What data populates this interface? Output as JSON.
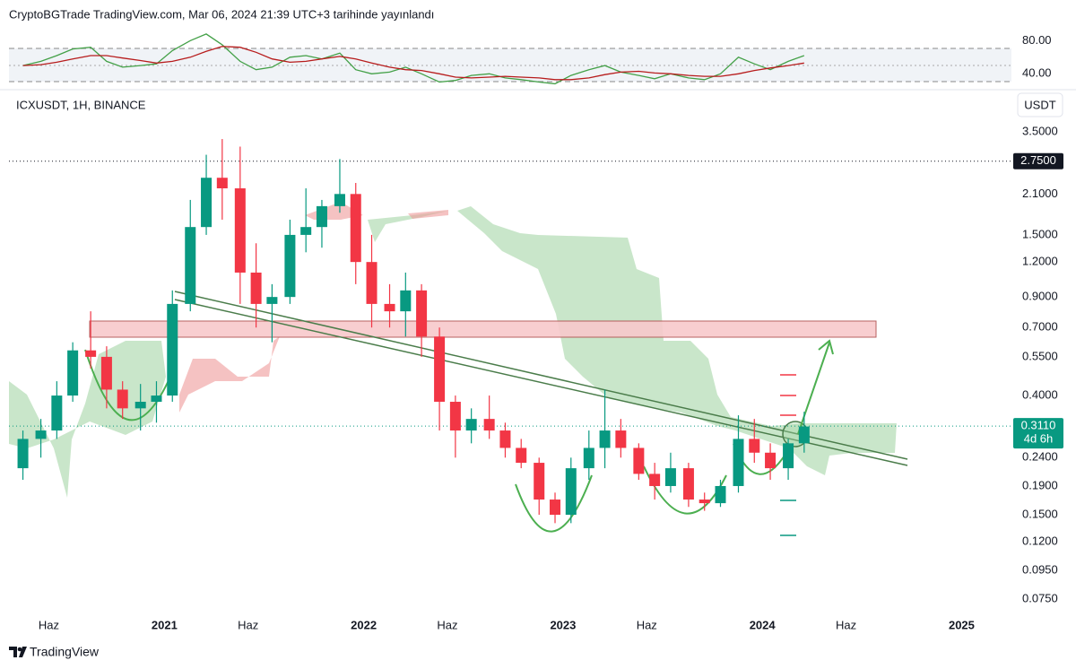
{
  "header": {
    "text": "CryptoBGTrade TradingView.com, Mar 06, 2024 21:39 UTC+3 tarihinde yayınlandı"
  },
  "footer": {
    "brand": "TradingView"
  },
  "chart_data": [
    {
      "type": "line",
      "x": [
        2020.29,
        2020.38,
        2020.46,
        2020.54,
        2020.63,
        2020.71,
        2020.79,
        2020.88,
        2020.96,
        2021.04,
        2021.13,
        2021.21,
        2021.29,
        2021.38,
        2021.46,
        2021.54,
        2021.63,
        2021.71,
        2021.79,
        2021.88,
        2021.96,
        2022.04,
        2022.13,
        2022.21,
        2022.29,
        2022.38,
        2022.46,
        2022.54,
        2022.63,
        2022.71,
        2022.79,
        2022.88,
        2022.96,
        2023.04,
        2023.13,
        2023.21,
        2023.29,
        2023.38,
        2023.46,
        2023.54,
        2023.63,
        2023.71,
        2023.79,
        2023.88,
        2023.96,
        2024.04,
        2024.13,
        2024.21
      ],
      "xlim": [
        2020.22,
        2025.25
      ],
      "ylim": [
        23,
        102
      ],
      "yticks": [
        {
          "value": 80,
          "label": "80.00"
        },
        {
          "value": 40,
          "label": "40.00"
        }
      ],
      "series": [
        {
          "color": "#43a047",
          "values": [
            50,
            55,
            62,
            70,
            72,
            55,
            48,
            50,
            52,
            68,
            80,
            88,
            75,
            55,
            45,
            48,
            60,
            62,
            58,
            65,
            45,
            40,
            42,
            48,
            40,
            30,
            32,
            38,
            40,
            35,
            33,
            30,
            28,
            38,
            45,
            50,
            42,
            38,
            34,
            40,
            35,
            33,
            40,
            60,
            52,
            45,
            55,
            62
          ]
        },
        {
          "color": "#b71c1c",
          "values": [
            50,
            51,
            54,
            58,
            62,
            62,
            59,
            56,
            53,
            55,
            60,
            67,
            73,
            72,
            66,
            58,
            54,
            55,
            58,
            61,
            58,
            53,
            48,
            45,
            44,
            40,
            36,
            35,
            36,
            37,
            36,
            35,
            33,
            33,
            35,
            39,
            42,
            43,
            41,
            40,
            38,
            37,
            37,
            40,
            44,
            47,
            50,
            53
          ]
        }
      ]
    },
    {
      "type": "candlestick",
      "title": "ICXUSDT, 1H, BINANCE",
      "currency": "USDT",
      "log_scale": true,
      "up_color": "#089981",
      "down_color": "#f23645",
      "x": [
        2020.29,
        2020.38,
        2020.46,
        2020.54,
        2020.63,
        2020.71,
        2020.79,
        2020.88,
        2020.96,
        2021.04,
        2021.13,
        2021.21,
        2021.29,
        2021.38,
        2021.46,
        2021.54,
        2021.63,
        2021.71,
        2021.79,
        2021.88,
        2021.96,
        2022.04,
        2022.13,
        2022.21,
        2022.29,
        2022.38,
        2022.46,
        2022.54,
        2022.63,
        2022.71,
        2022.79,
        2022.88,
        2022.96,
        2023.04,
        2023.13,
        2023.21,
        2023.29,
        2023.38,
        2023.46,
        2023.54,
        2023.63,
        2023.71,
        2023.79,
        2023.88,
        2023.96,
        2024.04,
        2024.13,
        2024.21
      ],
      "open": [
        0.22,
        0.28,
        0.3,
        0.4,
        0.58,
        0.55,
        0.42,
        0.36,
        0.38,
        0.4,
        0.85,
        1.6,
        2.4,
        2.2,
        1.1,
        0.85,
        0.9,
        1.5,
        1.6,
        1.9,
        2.1,
        1.2,
        0.85,
        0.8,
        0.95,
        0.65,
        0.38,
        0.3,
        0.33,
        0.3,
        0.26,
        0.23,
        0.17,
        0.15,
        0.22,
        0.26,
        0.3,
        0.26,
        0.21,
        0.19,
        0.22,
        0.17,
        0.165,
        0.19,
        0.28,
        0.25,
        0.22,
        0.27
      ],
      "high": [
        0.3,
        0.33,
        0.45,
        0.62,
        0.8,
        0.6,
        0.45,
        0.44,
        0.45,
        0.95,
        2.0,
        2.9,
        3.3,
        3.1,
        1.4,
        1.0,
        1.7,
        2.2,
        2.0,
        2.8,
        2.3,
        1.5,
        1.0,
        1.1,
        1.0,
        0.7,
        0.4,
        0.36,
        0.4,
        0.32,
        0.28,
        0.24,
        0.18,
        0.24,
        0.3,
        0.42,
        0.33,
        0.27,
        0.23,
        0.25,
        0.23,
        0.18,
        0.2,
        0.34,
        0.33,
        0.27,
        0.28,
        0.35
      ],
      "low": [
        0.2,
        0.24,
        0.28,
        0.38,
        0.5,
        0.36,
        0.33,
        0.3,
        0.32,
        0.38,
        0.8,
        1.5,
        1.7,
        0.85,
        0.7,
        0.62,
        0.85,
        1.3,
        1.35,
        1.8,
        1.0,
        0.7,
        0.7,
        0.65,
        0.55,
        0.3,
        0.24,
        0.27,
        0.28,
        0.24,
        0.22,
        0.15,
        0.14,
        0.14,
        0.2,
        0.22,
        0.24,
        0.2,
        0.17,
        0.18,
        0.16,
        0.155,
        0.16,
        0.18,
        0.23,
        0.2,
        0.2,
        0.25
      ],
      "close": [
        0.28,
        0.3,
        0.4,
        0.58,
        0.55,
        0.42,
        0.36,
        0.38,
        0.4,
        0.85,
        1.6,
        2.4,
        2.2,
        1.1,
        0.85,
        0.9,
        1.5,
        1.6,
        1.9,
        2.1,
        1.2,
        0.85,
        0.8,
        0.95,
        0.65,
        0.38,
        0.3,
        0.33,
        0.3,
        0.26,
        0.23,
        0.17,
        0.15,
        0.22,
        0.26,
        0.3,
        0.26,
        0.21,
        0.19,
        0.22,
        0.17,
        0.165,
        0.19,
        0.28,
        0.25,
        0.22,
        0.27,
        0.31
      ],
      "xlim": [
        2020.22,
        2025.25
      ],
      "xticks": [
        {
          "value": 2020.42,
          "label": "Haz"
        },
        2021,
        {
          "value": 2021.42,
          "label": "Haz"
        },
        2022,
        {
          "value": 2022.42,
          "label": "Haz"
        },
        2023,
        {
          "value": 2023.42,
          "label": "Haz"
        },
        2024,
        {
          "value": 2024.42,
          "label": "Haz"
        },
        2025
      ],
      "ylim": [
        0.055,
        3.97
      ],
      "yticks": [
        {
          "value": 3.5,
          "label": "3.5000"
        },
        {
          "value": 2.1,
          "label": "2.1000"
        },
        {
          "value": 1.5,
          "label": "1.5000"
        },
        {
          "value": 1.2,
          "label": "1.2000"
        },
        {
          "value": 0.9,
          "label": "0.9000"
        },
        {
          "value": 0.7,
          "label": "0.7000"
        },
        {
          "value": 0.55,
          "label": "0.5500"
        },
        {
          "value": 0.4,
          "label": "0.4000"
        },
        {
          "value": 0.24,
          "label": "0.2400"
        },
        {
          "value": 0.19,
          "label": "0.1900"
        },
        {
          "value": 0.15,
          "label": "0.1500"
        },
        {
          "value": 0.12,
          "label": "0.1200"
        },
        {
          "value": 0.095,
          "label": "0.0950"
        },
        {
          "value": 0.075,
          "label": "0.0750"
        }
      ],
      "level_line": {
        "value": 2.75,
        "label": "2.7500"
      },
      "last_price": {
        "value": 0.311,
        "label": "0.3110",
        "countdown": "4d 6h"
      }
    }
  ]
}
